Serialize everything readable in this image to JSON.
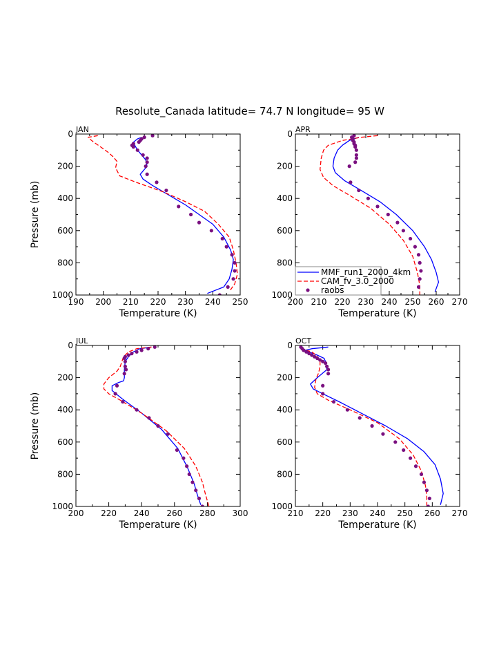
{
  "title": "Resolute_Canada   latitude= 74.7 N longitude= 95 W",
  "colors": {
    "mmf": "#0000ff",
    "cam": "#ff0000",
    "raobs": "#7a1080"
  },
  "legend": {
    "items": [
      {
        "label": "MMF_run1_2000_4km",
        "style": "solid",
        "color": "#0000ff"
      },
      {
        "label": "CAM_fv_3.0_2000",
        "style": "dashed",
        "color": "#ff0000"
      },
      {
        "label": "raobs",
        "style": "marker",
        "color": "#7a1080"
      }
    ]
  },
  "chart_data": [
    {
      "type": "line",
      "panel": "JAN",
      "xlabel": "Temperature (K)",
      "ylabel": "Pressure (mb)",
      "xlim": [
        190,
        250
      ],
      "xticks": [
        190,
        200,
        210,
        220,
        230,
        240,
        250
      ],
      "ylim": [
        0,
        1000
      ],
      "yticks": [
        0,
        200,
        400,
        600,
        800,
        1000
      ],
      "y_inverted": true,
      "series": [
        {
          "name": "MMF_run1_2000_4km",
          "x": [
            214,
            212.5,
            211,
            211.5,
            212.5,
            214,
            215.5,
            216,
            213.5,
            214.5,
            218,
            224,
            230,
            235,
            240,
            244,
            246.5,
            247.5,
            247,
            246,
            244,
            238
          ],
          "y": [
            20,
            30,
            50,
            70,
            100,
            130,
            160,
            200,
            250,
            280,
            320,
            380,
            440,
            500,
            560,
            640,
            720,
            780,
            840,
            900,
            950,
            990
          ]
        },
        {
          "name": "CAM_fv_3.0_2000",
          "x": [
            198,
            194.5,
            195,
            196.5,
            199,
            201.5,
            203.5,
            205,
            204.5,
            206,
            212,
            222,
            230,
            237,
            242,
            246,
            247.5,
            248.5,
            249,
            248,
            246
          ],
          "y": [
            10,
            20,
            30,
            50,
            80,
            110,
            140,
            170,
            210,
            260,
            300,
            360,
            420,
            480,
            560,
            640,
            720,
            800,
            870,
            930,
            980
          ]
        },
        {
          "name": "raobs",
          "x": [
            218,
            215,
            214,
            213.5,
            213,
            211,
            210.5,
            211,
            212.5,
            214.5,
            216,
            216,
            215.5,
            216,
            219.5,
            223,
            227.5,
            232,
            235,
            239.5,
            243.5,
            245,
            247,
            248,
            248,
            247.5,
            245.5,
            242.5
          ],
          "y": [
            10,
            20,
            30,
            40,
            50,
            60,
            70,
            80,
            100,
            130,
            150,
            175,
            200,
            250,
            300,
            350,
            450,
            500,
            550,
            600,
            650,
            700,
            750,
            800,
            850,
            900,
            950,
            1000
          ]
        }
      ]
    },
    {
      "type": "line",
      "panel": "APR",
      "xlabel": "Temperature (K)",
      "ylabel": "",
      "xlim": [
        200,
        270
      ],
      "xticks": [
        200,
        210,
        220,
        230,
        240,
        250,
        260,
        270
      ],
      "ylim": [
        0,
        1000
      ],
      "yticks": [
        0,
        200,
        400,
        600,
        800,
        1000
      ],
      "y_inverted": true,
      "series": [
        {
          "name": "MMF_run1_2000_4km",
          "x": [
            227,
            223,
            220,
            218,
            216.5,
            216,
            217,
            221,
            228,
            236,
            243,
            250,
            255,
            258,
            260,
            261,
            259.5
          ],
          "y": [
            20,
            40,
            70,
            100,
            150,
            200,
            240,
            290,
            350,
            420,
            500,
            600,
            700,
            780,
            860,
            920,
            980
          ]
        },
        {
          "name": "CAM_fv_3.0_2000",
          "x": [
            235,
            228,
            220,
            214,
            212,
            211,
            210.5,
            212,
            216,
            223,
            232,
            240,
            246,
            250,
            252,
            253,
            253
          ],
          "y": [
            10,
            20,
            40,
            70,
            100,
            150,
            220,
            270,
            320,
            380,
            460,
            560,
            660,
            760,
            860,
            940,
            1000
          ]
        },
        {
          "name": "raobs",
          "x": [
            225,
            224,
            224.5,
            224.5,
            225,
            225,
            225.5,
            225.5,
            226,
            226,
            226,
            225.5,
            223,
            223.5,
            227,
            231,
            235,
            239.5,
            243.5,
            246,
            249,
            251,
            252.5,
            253,
            253.5,
            253,
            252.5
          ],
          "y": [
            10,
            20,
            30,
            40,
            50,
            60,
            70,
            80,
            100,
            130,
            150,
            175,
            200,
            300,
            350,
            400,
            450,
            500,
            550,
            600,
            650,
            700,
            750,
            800,
            850,
            900,
            950
          ]
        }
      ]
    },
    {
      "type": "line",
      "panel": "JUL",
      "xlabel": "Temperature (K)",
      "ylabel": "Pressure (mb)",
      "xlim": [
        200,
        300
      ],
      "xticks": [
        200,
        220,
        240,
        260,
        280,
        300
      ],
      "ylim": [
        0,
        1000
      ],
      "yticks": [
        0,
        200,
        400,
        600,
        800,
        1000
      ],
      "y_inverted": true,
      "series": [
        {
          "name": "MMF_run1_2000_4km",
          "x": [
            246,
            239,
            235,
            232,
            230,
            229.5,
            229.5,
            229,
            226,
            222,
            222,
            228,
            240,
            252,
            262,
            268,
            272,
            274,
            276
          ],
          "y": [
            10,
            20,
            40,
            70,
            100,
            150,
            200,
            220,
            230,
            250,
            280,
            330,
            420,
            520,
            640,
            760,
            860,
            930,
            990
          ]
        },
        {
          "name": "CAM_fv_3.0_2000",
          "x": [
            246,
            237,
            232,
            229,
            228,
            227,
            225,
            220,
            217,
            217,
            220,
            227,
            240,
            255,
            266,
            273,
            277,
            279,
            281
          ],
          "y": [
            10,
            20,
            40,
            70,
            100,
            130,
            160,
            200,
            240,
            270,
            300,
            340,
            420,
            530,
            640,
            750,
            850,
            930,
            1000
          ]
        },
        {
          "name": "raobs",
          "x": [
            248,
            244,
            240,
            237,
            234,
            232,
            230,
            229.5,
            230,
            230,
            230.5,
            229.5,
            225,
            224,
            228.5,
            237,
            244.5,
            250,
            256,
            261.5,
            265.5,
            267.5,
            269,
            271,
            273,
            275,
            277
          ],
          "y": [
            10,
            20,
            30,
            40,
            50,
            60,
            70,
            80,
            100,
            130,
            150,
            175,
            250,
            300,
            350,
            400,
            450,
            500,
            550,
            650,
            700,
            750,
            800,
            850,
            900,
            950,
            1000
          ]
        }
      ]
    },
    {
      "type": "line",
      "panel": "OCT",
      "xlabel": "Temperature (K)",
      "ylabel": "",
      "xlim": [
        210,
        270
      ],
      "xticks": [
        210,
        220,
        230,
        240,
        250,
        260,
        270
      ],
      "ylim": [
        0,
        1000
      ],
      "yticks": [
        0,
        200,
        400,
        600,
        800,
        1000
      ],
      "y_inverted": true,
      "series": [
        {
          "name": "MMF_run1_2000_4km",
          "x": [
            222,
            216,
            213.5,
            215,
            218,
            220.5,
            221,
            221.5,
            218,
            215.5,
            216.5,
            220,
            226,
            234,
            243,
            251,
            257,
            261,
            263,
            264,
            263
          ],
          "y": [
            10,
            20,
            30,
            40,
            60,
            80,
            100,
            150,
            200,
            240,
            270,
            300,
            350,
            420,
            500,
            580,
            660,
            740,
            830,
            920,
            990
          ]
        },
        {
          "name": "CAM_fv_3.0_2000",
          "x": [
            212,
            212.5,
            214,
            216,
            217.5,
            218.5,
            219,
            219,
            218.5,
            217.5,
            217,
            218,
            222,
            230,
            240,
            248,
            253,
            256,
            257.5,
            258,
            258
          ],
          "y": [
            10,
            20,
            30,
            40,
            60,
            80,
            100,
            130,
            170,
            210,
            260,
            300,
            340,
            400,
            480,
            580,
            680,
            780,
            870,
            940,
            1000
          ]
        },
        {
          "name": "raobs",
          "x": [
            212,
            212.5,
            213,
            214,
            215,
            216,
            217,
            218,
            219,
            220,
            221,
            221.5,
            222,
            222,
            220,
            220,
            224,
            229,
            233.5,
            238,
            242,
            246.5,
            249.5,
            252,
            254,
            256,
            257,
            258,
            259,
            258.5
          ],
          "y": [
            10,
            20,
            30,
            40,
            50,
            60,
            70,
            80,
            90,
            100,
            110,
            130,
            150,
            175,
            250,
            300,
            350,
            400,
            450,
            500,
            550,
            600,
            650,
            700,
            750,
            800,
            850,
            900,
            950,
            1000
          ]
        }
      ]
    }
  ]
}
